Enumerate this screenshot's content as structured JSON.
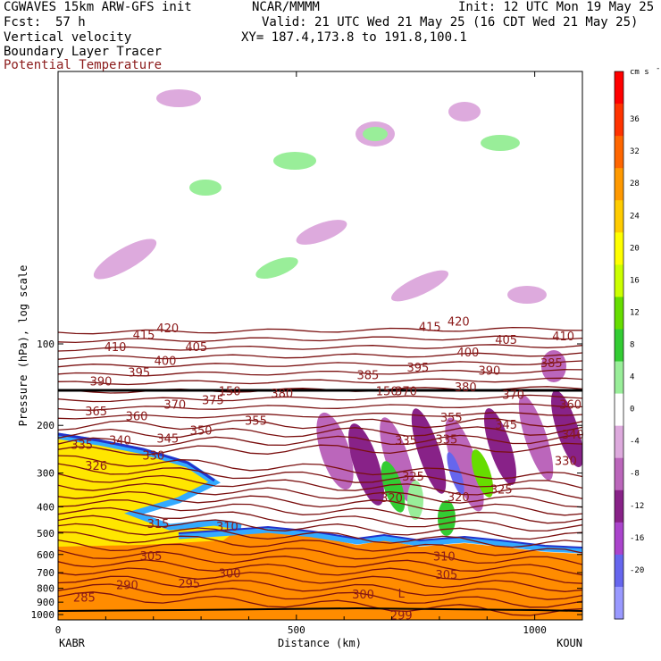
{
  "header": {
    "title_left": "CGWAVES 15km ARW-GFS init",
    "fcst_label": "Fcst:",
    "fcst_value": "57 h",
    "source": "NCAR/MMMM",
    "init": "Init: 12 UTC Mon 19 May 25",
    "valid": "Valid: 21 UTC Wed 21 May 25 (16 CDT Wed 21 May 25)",
    "xy": "XY= 187.4,173.8 to 191.8,100.1",
    "field1": "Vertical velocity",
    "field2": "Boundary Layer Tracer",
    "field3": "Potential Temperature"
  },
  "chart_data": {
    "type": "heatmap",
    "xlabel": "Distance (km)",
    "ylabel": "Pressure (hPa), log scale",
    "x_ticks": [
      0,
      500,
      1000
    ],
    "xlim": [
      0,
      1100
    ],
    "y_ticks": [
      100,
      200,
      300,
      400,
      500,
      600,
      700,
      800,
      900,
      1000
    ],
    "y_scale": "log",
    "left_endpoint": "KABR",
    "right_endpoint": "KOUN",
    "colorbar": {
      "unit_label": "cm s",
      "unit_exponent": "-1",
      "levels": [
        36,
        32,
        28,
        24,
        20,
        16,
        12,
        8,
        4,
        0,
        -4,
        -8,
        -12,
        -16,
        -20
      ],
      "colors": [
        "#ff0000",
        "#ff3300",
        "#ff6600",
        "#ff9900",
        "#ffcc00",
        "#ffff00",
        "#ccff00",
        "#66dd00",
        "#33cc33",
        "#99ee99",
        "#ffffff",
        "#ddaadd",
        "#bb66bb",
        "#882288",
        "#aa44cc",
        "#6666ee",
        "#9999ff"
      ]
    },
    "theta_labels": [
      {
        "text": "420",
        "x": 230,
        "p": 88
      },
      {
        "text": "415",
        "x": 180,
        "p": 93
      },
      {
        "text": "410",
        "x": 120,
        "p": 103
      },
      {
        "text": "405",
        "x": 290,
        "p": 103
      },
      {
        "text": "400",
        "x": 225,
        "p": 116
      },
      {
        "text": "395",
        "x": 170,
        "p": 128
      },
      {
        "text": "390",
        "x": 90,
        "p": 138
      },
      {
        "text": "385",
        "x": 650,
        "p": 131
      },
      {
        "text": "380",
        "x": 470,
        "p": 153
      },
      {
        "text": "375",
        "x": 325,
        "p": 162
      },
      {
        "text": "370",
        "x": 245,
        "p": 168
      },
      {
        "text": "365",
        "x": 80,
        "p": 178
      },
      {
        "text": "360",
        "x": 165,
        "p": 186
      },
      {
        "text": "355",
        "x": 415,
        "p": 193
      },
      {
        "text": "350",
        "x": 300,
        "p": 210
      },
      {
        "text": "345",
        "x": 230,
        "p": 225
      },
      {
        "text": "340",
        "x": 130,
        "p": 228
      },
      {
        "text": "335",
        "x": 50,
        "p": 237
      },
      {
        "text": "330",
        "x": 200,
        "p": 260
      },
      {
        "text": "326",
        "x": 80,
        "p": 283
      },
      {
        "text": "325",
        "x": 745,
        "p": 310
      },
      {
        "text": "320",
        "x": 700,
        "p": 372
      },
      {
        "text": "315",
        "x": 210,
        "p": 465
      },
      {
        "text": "310",
        "x": 355,
        "p": 474
      },
      {
        "text": "305",
        "x": 195,
        "p": 610
      },
      {
        "text": "300",
        "x": 360,
        "p": 707
      },
      {
        "text": "295",
        "x": 275,
        "p": 773
      },
      {
        "text": "290",
        "x": 145,
        "p": 782
      },
      {
        "text": "285",
        "x": 55,
        "p": 870
      },
      {
        "text": "415",
        "x": 780,
        "p": 87
      },
      {
        "text": "420",
        "x": 840,
        "p": 83
      },
      {
        "text": "405",
        "x": 940,
        "p": 97
      },
      {
        "text": "410",
        "x": 1060,
        "p": 94
      },
      {
        "text": "400",
        "x": 860,
        "p": 108
      },
      {
        "text": "395",
        "x": 755,
        "p": 123
      },
      {
        "text": "390",
        "x": 905,
        "p": 126
      },
      {
        "text": "385",
        "x": 1035,
        "p": 118
      },
      {
        "text": "380",
        "x": 855,
        "p": 145
      },
      {
        "text": "370",
        "x": 955,
        "p": 155
      },
      {
        "text": "360",
        "x": 1075,
        "p": 168
      },
      {
        "text": "355",
        "x": 825,
        "p": 188
      },
      {
        "text": "345",
        "x": 940,
        "p": 200
      },
      {
        "text": "340",
        "x": 1080,
        "p": 217
      },
      {
        "text": "335",
        "x": 730,
        "p": 228
      },
      {
        "text": "335",
        "x": 815,
        "p": 226
      },
      {
        "text": "330",
        "x": 1065,
        "p": 272
      },
      {
        "text": "325",
        "x": 930,
        "p": 347
      },
      {
        "text": "320",
        "x": 840,
        "p": 370
      },
      {
        "text": "310",
        "x": 810,
        "p": 612
      },
      {
        "text": "305",
        "x": 815,
        "p": 717
      },
      {
        "text": "300",
        "x": 640,
        "p": 846
      },
      {
        "text": "299",
        "x": 720,
        "p": 1010
      },
      {
        "text": "L",
        "x": 720,
        "p": 840
      },
      {
        "text": "150",
        "x": 360,
        "p": 150
      },
      {
        "text": "150",
        "x": 690,
        "p": 150
      },
      {
        "text": "370",
        "x": 730,
        "p": 150
      }
    ]
  }
}
